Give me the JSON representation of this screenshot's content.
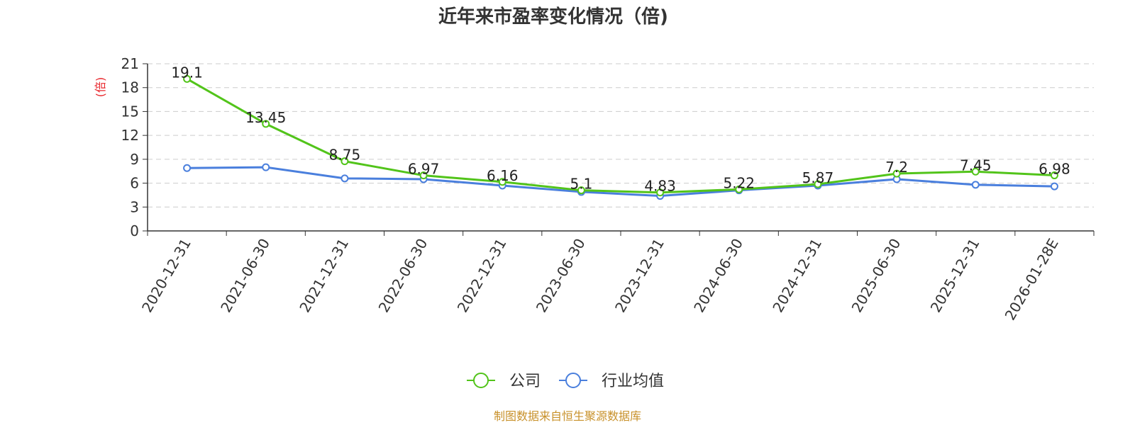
{
  "colors": {
    "company": "#52c41a",
    "industry": "#4a7fdd",
    "unit": "#e8262b",
    "source": "#c8912a",
    "grid": "#cccccc",
    "axis": "#333333"
  },
  "chart_data": {
    "type": "line",
    "title": "近年来市盈率变化情况（倍)",
    "ylabel": "(倍)",
    "ylim": [
      0,
      21
    ],
    "yticks": [
      0,
      3,
      6,
      9,
      12,
      15,
      18,
      21
    ],
    "categories": [
      "2020-12-31",
      "2021-06-30",
      "2021-12-31",
      "2022-06-30",
      "2022-12-31",
      "2023-06-30",
      "2023-12-31",
      "2024-06-30",
      "2024-12-31",
      "2025-06-30",
      "2025-12-31",
      "2026-01-28E"
    ],
    "series": [
      {
        "name": "公司",
        "values": [
          19.1,
          13.45,
          8.75,
          6.97,
          6.16,
          5.1,
          4.83,
          5.22,
          5.87,
          7.2,
          7.45,
          6.98
        ],
        "labels": [
          "19.1",
          "13.45",
          "8.75",
          "6.97",
          "6.16",
          "5.1",
          "4.83",
          "5.22",
          "5.87",
          "7.2",
          "7.45",
          "6.98"
        ]
      },
      {
        "name": "行业均值",
        "values": [
          7.9,
          8.0,
          6.6,
          6.5,
          5.7,
          4.9,
          4.4,
          5.1,
          5.7,
          6.5,
          5.8,
          5.6
        ]
      }
    ],
    "grid": true,
    "legend_position": "bottom-center"
  },
  "source": "制图数据来自恒生聚源数据库"
}
